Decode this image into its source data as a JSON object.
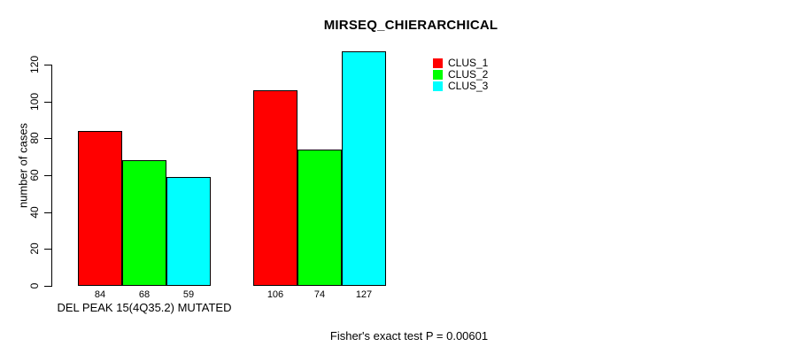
{
  "chart_data": {
    "type": "bar",
    "title": "MIRSEQ_CHIERARCHICAL",
    "ylabel": "number of cases",
    "xlabel": "",
    "group_labels": [
      "DEL PEAK 15(4Q35.2) MUTATED",
      ""
    ],
    "series": [
      {
        "name": "CLUS_1",
        "color": "#ff0000",
        "values": [
          84,
          106
        ]
      },
      {
        "name": "CLUS_2",
        "color": "#00ff00",
        "values": [
          68,
          74
        ]
      },
      {
        "name": "CLUS_3",
        "color": "#00ffff",
        "values": [
          59,
          127
        ]
      }
    ],
    "bar_value_labels": [
      [
        84,
        68,
        59
      ],
      [
        106,
        74,
        127
      ]
    ],
    "yticks": [
      0,
      20,
      40,
      60,
      80,
      100,
      120
    ],
    "ylim": [
      0,
      120
    ],
    "grid": false,
    "legend": {
      "position": "top-right",
      "entries": [
        "CLUS_1",
        "CLUS_2",
        "CLUS_3"
      ]
    },
    "annotation": "Fisher's exact test P = 0.00601",
    "bar_border_color": "#000000",
    "axis_color": "#000000"
  }
}
